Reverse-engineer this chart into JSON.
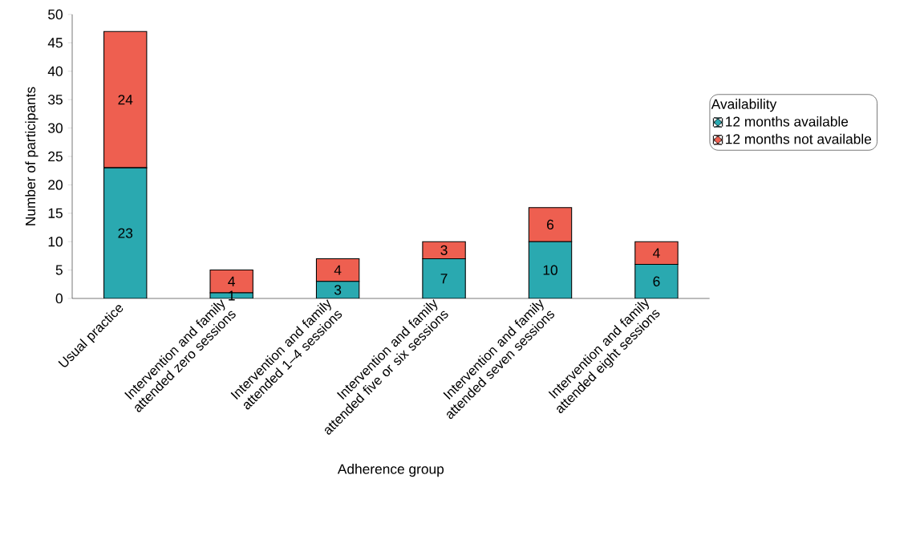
{
  "chart_data": {
    "type": "bar",
    "stacked": true,
    "xlabel": "Adherence group",
    "ylabel": "Number of participants",
    "legend_title": "Availability",
    "legend": "right",
    "categories": [
      "Usual practice",
      "Intervention and family attended zero sessions",
      "Intervention and family attended 1–4 sessions",
      "Intervention and family attended five or six sessions",
      "Intervention and family attended seven sessions",
      "Intervention and family attended eight sessions"
    ],
    "series": [
      {
        "name": "12 months available",
        "color": "#2aa9b0",
        "values": [
          23,
          1,
          3,
          7,
          10,
          6
        ]
      },
      {
        "name": "12 months not available",
        "color": "#ee5f50",
        "values": [
          24,
          4,
          4,
          3,
          6,
          4
        ]
      }
    ],
    "ylim": [
      0,
      50
    ],
    "yticks": [
      0,
      5,
      10,
      15,
      20,
      25,
      30,
      35,
      40,
      45,
      50
    ],
    "data_labels": true
  }
}
